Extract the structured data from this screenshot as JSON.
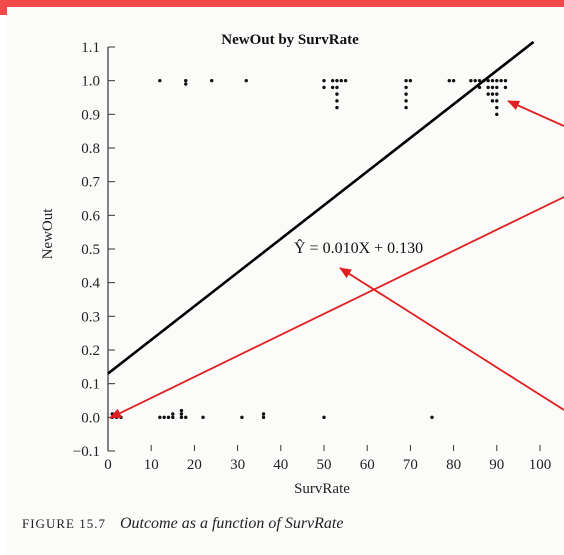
{
  "colors": {
    "top_bar": "#f04a4a",
    "arrow": "#e02020",
    "ink": "#111111"
  },
  "caption": {
    "figure": "FIGURE 15.7",
    "text": "Outcome as a function of SurvRate"
  },
  "chart_data": {
    "type": "scatter",
    "title": "NewOut by SurvRate",
    "xlabel": "SurvRate",
    "ylabel": "NewOut",
    "xlim": [
      0,
      100
    ],
    "ylim": [
      -0.1,
      1.1
    ],
    "xticks": [
      0,
      10,
      20,
      30,
      40,
      50,
      60,
      70,
      80,
      90,
      100
    ],
    "yticks": [
      -0.1,
      0.0,
      0.1,
      0.2,
      0.3,
      0.4,
      0.5,
      0.6,
      0.7,
      0.8,
      0.9,
      1.0,
      1.1
    ],
    "ytick_labels": [
      "−0.1",
      "0.0",
      "0.1",
      "0.2",
      "0.3",
      "0.4",
      "0.5",
      "0.6",
      "0.7",
      "0.8",
      "0.9",
      "1.0",
      "1.1"
    ],
    "grid": false,
    "equation_label": "Ŷ = 0.010X + 0.130",
    "regression": {
      "slope": 0.01,
      "intercept": 0.13
    },
    "points": [
      {
        "x": 12,
        "y": 1.0
      },
      {
        "x": 18,
        "y": 1.0
      },
      {
        "x": 18,
        "y": 0.99
      },
      {
        "x": 24,
        "y": 1.0
      },
      {
        "x": 32,
        "y": 1.0
      },
      {
        "x": 50,
        "y": 1.0
      },
      {
        "x": 50,
        "y": 0.98
      },
      {
        "x": 52,
        "y": 1.0
      },
      {
        "x": 52,
        "y": 0.98
      },
      {
        "x": 53,
        "y": 1.0
      },
      {
        "x": 53,
        "y": 0.98
      },
      {
        "x": 53,
        "y": 0.96
      },
      {
        "x": 53,
        "y": 0.94
      },
      {
        "x": 53,
        "y": 0.92
      },
      {
        "x": 54,
        "y": 1.0
      },
      {
        "x": 55,
        "y": 1.0
      },
      {
        "x": 69,
        "y": 1.0
      },
      {
        "x": 69,
        "y": 0.98
      },
      {
        "x": 69,
        "y": 0.96
      },
      {
        "x": 69,
        "y": 0.94
      },
      {
        "x": 69,
        "y": 0.92
      },
      {
        "x": 70,
        "y": 1.0
      },
      {
        "x": 79,
        "y": 1.0
      },
      {
        "x": 80,
        "y": 1.0
      },
      {
        "x": 84,
        "y": 1.0
      },
      {
        "x": 85,
        "y": 1.0
      },
      {
        "x": 86,
        "y": 1.0
      },
      {
        "x": 86,
        "y": 0.98
      },
      {
        "x": 87,
        "y": 1.0
      },
      {
        "x": 88,
        "y": 1.0
      },
      {
        "x": 88,
        "y": 0.98
      },
      {
        "x": 88,
        "y": 0.96
      },
      {
        "x": 89,
        "y": 1.0
      },
      {
        "x": 89,
        "y": 0.98
      },
      {
        "x": 89,
        "y": 0.96
      },
      {
        "x": 89,
        "y": 0.94
      },
      {
        "x": 90,
        "y": 1.0
      },
      {
        "x": 90,
        "y": 0.98
      },
      {
        "x": 90,
        "y": 0.96
      },
      {
        "x": 90,
        "y": 0.94
      },
      {
        "x": 90,
        "y": 0.92
      },
      {
        "x": 90,
        "y": 0.9
      },
      {
        "x": 91,
        "y": 1.0
      },
      {
        "x": 92,
        "y": 1.0
      },
      {
        "x": 92,
        "y": 0.98
      },
      {
        "x": 1,
        "y": 0.0
      },
      {
        "x": 1,
        "y": 0.01
      },
      {
        "x": 2,
        "y": 0.0
      },
      {
        "x": 3,
        "y": 0.0
      },
      {
        "x": 12,
        "y": 0.0
      },
      {
        "x": 13,
        "y": 0.0
      },
      {
        "x": 14,
        "y": 0.0
      },
      {
        "x": 15,
        "y": 0.0
      },
      {
        "x": 15,
        "y": 0.01
      },
      {
        "x": 17,
        "y": 0.0
      },
      {
        "x": 17,
        "y": 0.01
      },
      {
        "x": 17,
        "y": 0.02
      },
      {
        "x": 18,
        "y": 0.0
      },
      {
        "x": 22,
        "y": 0.0
      },
      {
        "x": 31,
        "y": 0.0
      },
      {
        "x": 36,
        "y": 0.0
      },
      {
        "x": 36,
        "y": 0.01
      },
      {
        "x": 50,
        "y": 0.0
      },
      {
        "x": 75,
        "y": 0.0
      }
    ]
  }
}
